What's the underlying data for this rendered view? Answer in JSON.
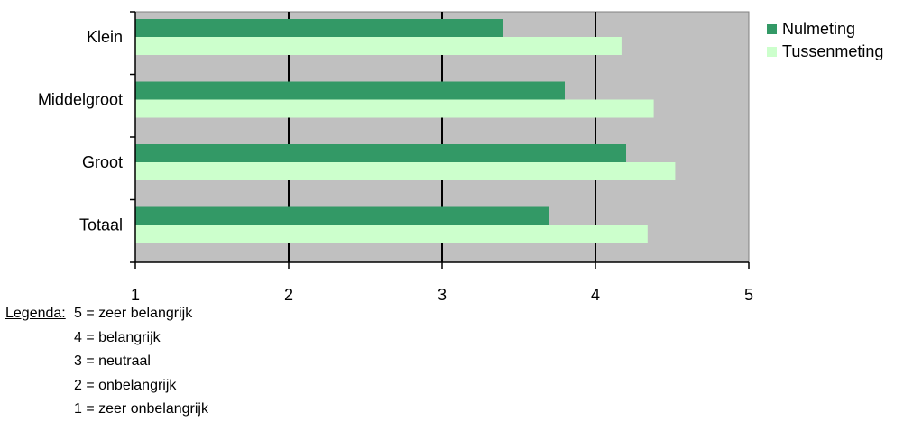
{
  "chart_data": {
    "type": "bar",
    "orientation": "horizontal",
    "categories": [
      "Klein",
      "Middelgroot",
      "Groot",
      "Totaal"
    ],
    "series": [
      {
        "name": "Nulmeting",
        "values": [
          3.4,
          3.8,
          4.2,
          3.7
        ],
        "color": "#339966"
      },
      {
        "name": "Tussenmeting",
        "values": [
          4.17,
          4.38,
          4.52,
          4.34
        ],
        "color": "#ccffcc"
      }
    ],
    "xlim": [
      1,
      5
    ],
    "xticks": [
      "1",
      "2",
      "3",
      "4",
      "5"
    ],
    "grid": "vertical",
    "plot_background": "#c0c0c0",
    "legend_position": "right"
  },
  "scale_legend": {
    "title": "Legenda:",
    "items": [
      "5 = zeer belangrijk",
      "4 = belangrijk",
      "3 = neutraal",
      "2 = onbelangrijk",
      "1 = zeer onbelangrijk"
    ]
  }
}
